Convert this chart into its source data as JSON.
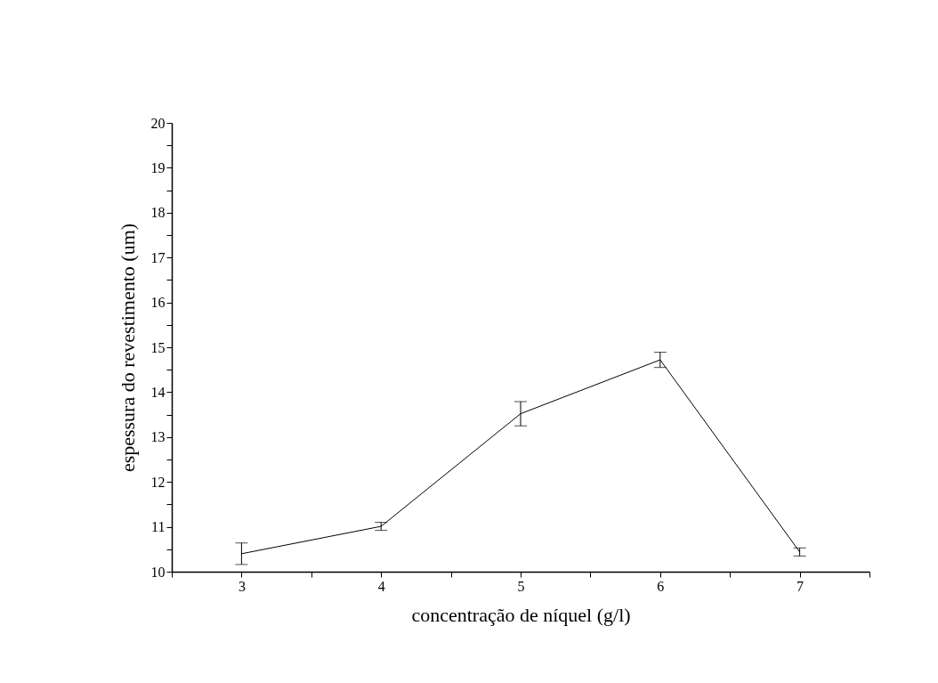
{
  "chart_data": {
    "type": "line",
    "xlabel": "concentração de níquel (g/l)",
    "ylabel": "espessura do revestimento (um)",
    "x": [
      3,
      4,
      5,
      6,
      7
    ],
    "series": [
      {
        "color": "#000000",
        "values": [
          10.4,
          11.01,
          13.52,
          14.72,
          10.44
        ],
        "errors": [
          0.24,
          0.09,
          0.27,
          0.17,
          0.09
        ]
      }
    ],
    "xlim": [
      2.5,
      7.5
    ],
    "xticks": [
      {
        "value": 2.5,
        "label": null
      },
      3,
      {
        "value": 3.5,
        "label": null
      },
      4,
      {
        "value": 4.5,
        "label": null
      },
      5,
      {
        "value": 5.5,
        "label": null
      },
      6,
      {
        "value": 6.5,
        "label": null
      },
      7,
      {
        "value": 7.5,
        "label": null
      }
    ],
    "ylim": [
      10,
      20
    ],
    "yticks": [
      10,
      {
        "value": 10.5,
        "label": null
      },
      11,
      {
        "value": 11.5,
        "label": null
      },
      12,
      {
        "value": 12.5,
        "label": null
      },
      13,
      {
        "value": 13.5,
        "label": null
      },
      14,
      {
        "value": 14.5,
        "label": null
      },
      15,
      {
        "value": 15.5,
        "label": null
      },
      16,
      {
        "value": 16.5,
        "label": null
      },
      17,
      {
        "value": 17.5,
        "label": null
      },
      18,
      {
        "value": 18.5,
        "label": null
      },
      19,
      {
        "value": 19.5,
        "label": null
      },
      20
    ],
    "grid": false,
    "marker": "none",
    "line_style": "solid"
  }
}
